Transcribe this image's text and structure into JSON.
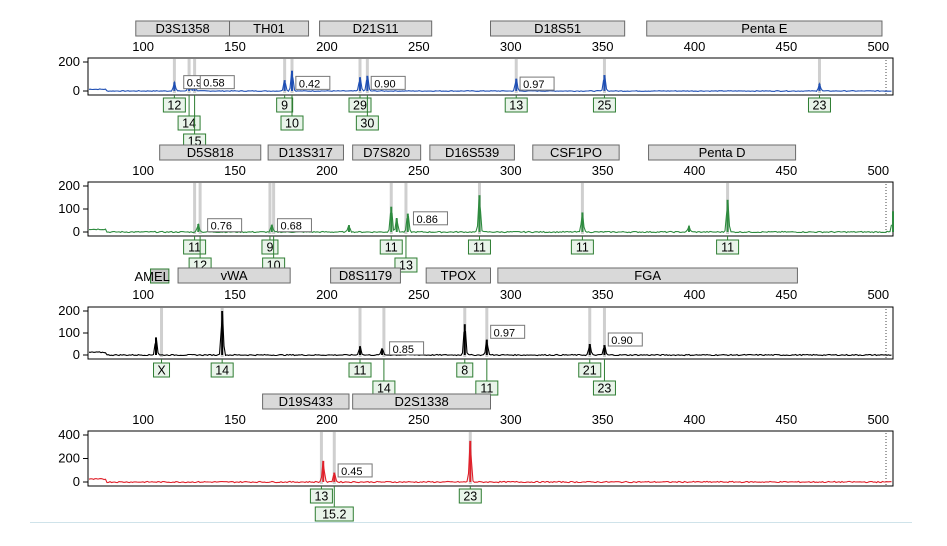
{
  "chart_data": {
    "type": "line",
    "x_ticks": [
      100,
      150,
      200,
      250,
      300,
      350,
      400,
      450,
      500
    ],
    "panels": [
      {
        "color": "#1f4fb4",
        "ylim": [
          0,
          200
        ],
        "yticks": [
          0,
          200
        ],
        "xlim": [
          70,
          508
        ],
        "loci": [
          {
            "name": "D3S1358",
            "from": 96,
            "to": 147
          },
          {
            "name": "TH01",
            "from": 147,
            "to": 190
          },
          {
            "name": "D21S11",
            "from": 196,
            "to": 257
          },
          {
            "name": "D18S51",
            "from": 289,
            "to": 362
          },
          {
            "name": "Penta E",
            "from": 374,
            "to": 502
          }
        ],
        "peaks": [
          {
            "x": 117,
            "h": 60
          },
          {
            "x": 125,
            "h": 65
          },
          {
            "x": 128,
            "h": 58
          },
          {
            "x": 177,
            "h": 75
          },
          {
            "x": 181,
            "h": 140
          },
          {
            "x": 218,
            "h": 95
          },
          {
            "x": 222,
            "h": 105
          },
          {
            "x": 303,
            "h": 85
          },
          {
            "x": 351,
            "h": 110
          },
          {
            "x": 468,
            "h": 50
          }
        ],
        "ratios": [
          {
            "text": "0.94",
            "x": 121,
            "y": 30
          },
          {
            "text": "0.58",
            "x": 130,
            "y": 30
          },
          {
            "text": "0.42",
            "x": 182,
            "y": 25
          },
          {
            "text": "0.90",
            "x": 223,
            "y": 25
          },
          {
            "text": "0.97",
            "x": 304,
            "y": 20
          }
        ],
        "alleles": [
          {
            "text": "12",
            "x": 117,
            "row": 0
          },
          {
            "text": "14",
            "x": 125,
            "row": 1
          },
          {
            "text": "15",
            "x": 128,
            "row": 2
          },
          {
            "text": "9",
            "x": 177,
            "row": 0
          },
          {
            "text": "10",
            "x": 181,
            "row": 1
          },
          {
            "text": "29",
            "x": 218,
            "row": 0
          },
          {
            "text": "30",
            "x": 222,
            "row": 1
          },
          {
            "text": "13",
            "x": 303,
            "row": 0
          },
          {
            "text": "25",
            "x": 351,
            "row": 0
          },
          {
            "text": "23",
            "x": 468,
            "row": 0
          }
        ]
      },
      {
        "color": "#2e8b3f",
        "ylim": [
          0,
          200
        ],
        "yticks": [
          0,
          100,
          200
        ],
        "xlim": [
          70,
          508
        ],
        "loci": [
          {
            "name": "D5S818",
            "from": 109,
            "to": 164
          },
          {
            "name": "D13S317",
            "from": 168,
            "to": 209
          },
          {
            "name": "D7S820",
            "from": 214,
            "to": 251
          },
          {
            "name": "D16S539",
            "from": 256,
            "to": 302
          },
          {
            "name": "CSF1PO",
            "from": 312,
            "to": 359
          },
          {
            "name": "Penta D",
            "from": 375,
            "to": 455
          }
        ],
        "peaks": [
          {
            "x": 130,
            "h": 35
          },
          {
            "x": 170,
            "h": 30
          },
          {
            "x": 212,
            "h": 30
          },
          {
            "x": 235,
            "h": 110
          },
          {
            "x": 238,
            "h": 60
          },
          {
            "x": 244,
            "h": 80
          },
          {
            "x": 283,
            "h": 160
          },
          {
            "x": 339,
            "h": 85
          },
          {
            "x": 397,
            "h": 25
          },
          {
            "x": 418,
            "h": 140
          },
          {
            "x": 508,
            "h": 90
          }
        ],
        "ratios": [
          {
            "text": "0.76",
            "x": 134,
            "y": 10
          },
          {
            "text": "0.68",
            "x": 172,
            "y": 10
          },
          {
            "text": "0.86",
            "x": 246,
            "y": 40
          }
        ],
        "alleles": [
          {
            "text": "11",
            "x": 128,
            "row": 0
          },
          {
            "text": "12",
            "x": 131,
            "row": 1
          },
          {
            "text": "9",
            "x": 169,
            "row": 0
          },
          {
            "text": "10",
            "x": 171,
            "row": 1
          },
          {
            "text": "11",
            "x": 235,
            "row": 0
          },
          {
            "text": "13",
            "x": 243,
            "row": 1
          },
          {
            "text": "11",
            "x": 283,
            "row": 0
          },
          {
            "text": "11",
            "x": 339,
            "row": 0
          },
          {
            "text": "11",
            "x": 418,
            "row": 0
          }
        ]
      },
      {
        "color": "#000000",
        "ylim": [
          0,
          200
        ],
        "yticks": [
          0,
          100,
          200
        ],
        "xlim": [
          70,
          508
        ],
        "loci": [
          {
            "name": "AMEL",
            "from": 104,
            "to": 114,
            "outside_label": true
          },
          {
            "name": "vWA",
            "from": 119,
            "to": 180
          },
          {
            "name": "D8S1179",
            "from": 202,
            "to": 240
          },
          {
            "name": "TPOX",
            "from": 254,
            "to": 289
          },
          {
            "name": "FGA",
            "from": 293,
            "to": 456
          }
        ],
        "peaks": [
          {
            "x": 107,
            "h": 80
          },
          {
            "x": 143,
            "h": 200
          },
          {
            "x": 218,
            "h": 40
          },
          {
            "x": 230,
            "h": 30
          },
          {
            "x": 275,
            "h": 140
          },
          {
            "x": 287,
            "h": 70
          },
          {
            "x": 343,
            "h": 50
          },
          {
            "x": 351,
            "h": 45
          }
        ],
        "ratios": [
          {
            "text": "0.85",
            "x": 233,
            "y": 10
          },
          {
            "text": "0.97",
            "x": 288,
            "y": 85
          },
          {
            "text": "0.90",
            "x": 352,
            "y": 50
          }
        ],
        "alleles": [
          {
            "text": "X",
            "x": 110,
            "row": 0
          },
          {
            "text": "14",
            "x": 143,
            "row": 0
          },
          {
            "text": "11",
            "x": 218,
            "row": 0
          },
          {
            "text": "14",
            "x": 231,
            "row": 1
          },
          {
            "text": "8",
            "x": 275,
            "row": 0
          },
          {
            "text": "11",
            "x": 287,
            "row": 1
          },
          {
            "text": "21",
            "x": 343,
            "row": 0
          },
          {
            "text": "23",
            "x": 351,
            "row": 1
          }
        ]
      },
      {
        "color": "#e0202a",
        "ylim": [
          0,
          400
        ],
        "yticks": [
          0,
          200,
          400
        ],
        "xlim": [
          70,
          508
        ],
        "loci": [
          {
            "name": "D19S433",
            "from": 165,
            "to": 212
          },
          {
            "name": "D2S1338",
            "from": 214,
            "to": 289
          }
        ],
        "peaks": [
          {
            "x": 198,
            "h": 180
          },
          {
            "x": 204,
            "h": 80
          },
          {
            "x": 278,
            "h": 350
          }
        ],
        "ratios": [
          {
            "text": "0.45",
            "x": 205,
            "y": 60
          }
        ],
        "alleles": [
          {
            "text": "13",
            "x": 197,
            "row": 0
          },
          {
            "text": "15.2",
            "x": 204,
            "row": 1
          },
          {
            "text": "23",
            "x": 278,
            "row": 0
          }
        ]
      }
    ]
  }
}
